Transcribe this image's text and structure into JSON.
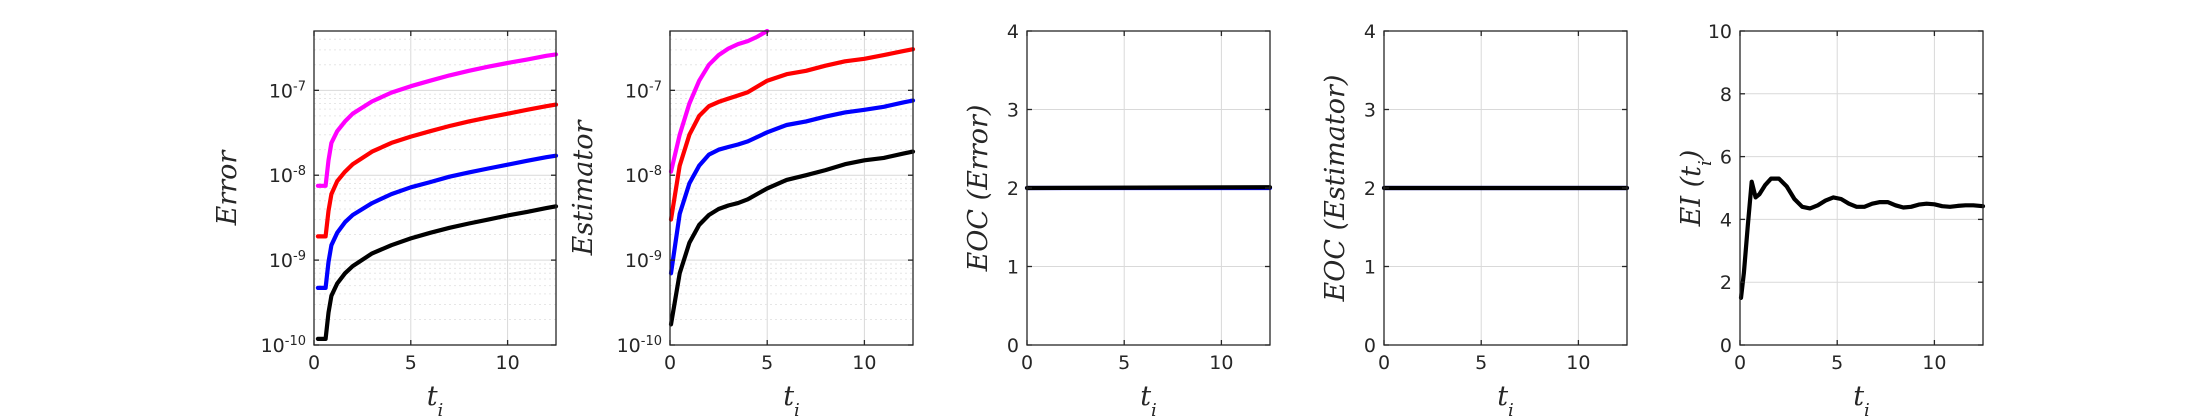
{
  "chart_data": [
    {
      "type": "line",
      "yscale": "log",
      "xlabel": "t_i",
      "ylabel": "Error",
      "xlim": [
        0,
        12.5
      ],
      "ylim": [
        1e-10,
        5e-07
      ],
      "xticks": [
        "0",
        "5",
        "10"
      ],
      "yticks": [
        "10^-10",
        "10^-9",
        "10^-8",
        "10^-7"
      ],
      "grid": true,
      "series": [
        {
          "color": "#ff00ff",
          "x": [
            0.2,
            0.6,
            0.75,
            0.9,
            1.2,
            1.6,
            2,
            3,
            4,
            5,
            6,
            7,
            8,
            9,
            10,
            11,
            12,
            12.5
          ],
          "y": [
            7.5e-09,
            7.5e-09,
            1.5e-08,
            2.4e-08,
            3.3e-08,
            4.3e-08,
            5.3e-08,
            7.4e-08,
            9.4e-08,
            1.12e-07,
            1.3e-07,
            1.5e-07,
            1.7e-07,
            1.9e-07,
            2.1e-07,
            2.3e-07,
            2.55e-07,
            2.65e-07
          ]
        },
        {
          "color": "#ff0000",
          "x": [
            0.2,
            0.6,
            0.75,
            0.9,
            1.2,
            1.6,
            2,
            3,
            4,
            5,
            6,
            7,
            8,
            9,
            10,
            11,
            12,
            12.5
          ],
          "y": [
            1.9e-09,
            1.9e-09,
            3.8e-09,
            6e-09,
            8.5e-09,
            1.1e-08,
            1.35e-08,
            1.9e-08,
            2.4e-08,
            2.85e-08,
            3.3e-08,
            3.8e-08,
            4.3e-08,
            4.8e-08,
            5.3e-08,
            5.9e-08,
            6.5e-08,
            6.8e-08
          ]
        },
        {
          "color": "#0000ff",
          "x": [
            0.2,
            0.6,
            0.75,
            0.9,
            1.2,
            1.6,
            2,
            3,
            4,
            5,
            6,
            7,
            8,
            9,
            10,
            11,
            12,
            12.5
          ],
          "y": [
            4.7e-10,
            4.7e-10,
            9.5e-10,
            1.5e-09,
            2.1e-09,
            2.8e-09,
            3.4e-09,
            4.7e-09,
            6e-09,
            7.2e-09,
            8.3e-09,
            9.6e-09,
            1.08e-08,
            1.2e-08,
            1.33e-08,
            1.48e-08,
            1.63e-08,
            1.7e-08
          ]
        },
        {
          "color": "#000000",
          "x": [
            0.2,
            0.6,
            0.75,
            0.9,
            1.2,
            1.6,
            2,
            3,
            4,
            5,
            6,
            7,
            8,
            9,
            10,
            11,
            12,
            12.5
          ],
          "y": [
            1.18e-10,
            1.18e-10,
            2.4e-10,
            3.8e-10,
            5.3e-10,
            7e-10,
            8.5e-10,
            1.2e-09,
            1.5e-09,
            1.8e-09,
            2.1e-09,
            2.4e-09,
            2.7e-09,
            3e-09,
            3.35e-09,
            3.7e-09,
            4.1e-09,
            4.3e-09
          ]
        }
      ]
    },
    {
      "type": "line",
      "yscale": "log",
      "xlabel": "t_i",
      "ylabel": "Estimator",
      "xlim": [
        0,
        12.5
      ],
      "ylim": [
        1e-10,
        5e-07
      ],
      "xticks": [
        "0",
        "5",
        "10"
      ],
      "yticks": [
        "10^-10",
        "10^-9",
        "10^-8",
        "10^-7"
      ],
      "grid": true,
      "series": [
        {
          "color": "#ff00ff",
          "x": [
            0.05,
            0.5,
            1,
            1.5,
            2,
            2.5,
            3,
            3.5,
            4,
            4.5,
            5
          ],
          "y": [
            1.1e-08,
            3e-08,
            7e-08,
            1.3e-07,
            2e-07,
            2.6e-07,
            3.1e-07,
            3.5e-07,
            3.8e-07,
            4.3e-07,
            5e-07
          ]
        },
        {
          "color": "#ff0000",
          "x": [
            0.05,
            0.5,
            1,
            1.5,
            2,
            2.5,
            3,
            3.5,
            4,
            5,
            6,
            7,
            8,
            9,
            10,
            11,
            12,
            12.5
          ],
          "y": [
            3e-09,
            1.3e-08,
            3e-08,
            5e-08,
            6.5e-08,
            7.3e-08,
            8e-08,
            8.7e-08,
            9.5e-08,
            1.3e-07,
            1.55e-07,
            1.7e-07,
            1.95e-07,
            2.2e-07,
            2.35e-07,
            2.6e-07,
            2.9e-07,
            3.05e-07
          ]
        },
        {
          "color": "#0000ff",
          "x": [
            0.05,
            0.5,
            1,
            1.5,
            2,
            2.5,
            3,
            3.5,
            4,
            5,
            6,
            7,
            8,
            9,
            10,
            11,
            12,
            12.5
          ],
          "y": [
            7e-10,
            3.5e-09,
            8e-09,
            1.3e-08,
            1.75e-08,
            2e-08,
            2.15e-08,
            2.3e-08,
            2.5e-08,
            3.2e-08,
            3.9e-08,
            4.3e-08,
            4.9e-08,
            5.5e-08,
            5.9e-08,
            6.4e-08,
            7.2e-08,
            7.6e-08
          ]
        },
        {
          "color": "#000000",
          "x": [
            0.05,
            0.5,
            1,
            1.5,
            2,
            2.5,
            3,
            3.5,
            4,
            5,
            6,
            7,
            8,
            9,
            10,
            11,
            12,
            12.5
          ],
          "y": [
            1.75e-10,
            7e-10,
            1.6e-09,
            2.6e-09,
            3.4e-09,
            4e-09,
            4.4e-09,
            4.7e-09,
            5.2e-09,
            7e-09,
            8.8e-09,
            1e-08,
            1.15e-08,
            1.35e-08,
            1.5e-08,
            1.6e-08,
            1.8e-08,
            1.9e-08
          ]
        }
      ]
    },
    {
      "type": "line",
      "yscale": "linear",
      "xlabel": "t_i",
      "ylabel": "EOC (Error)",
      "xlim": [
        0,
        12.5
      ],
      "ylim": [
        0,
        4
      ],
      "xticks": [
        "0",
        "5",
        "10"
      ],
      "yticks": [
        "0",
        "1",
        "2",
        "3",
        "4"
      ],
      "grid": true,
      "series": [
        {
          "color": "#0000ff",
          "x": [
            0,
            12.5
          ],
          "y": [
            2.0,
            2.0
          ]
        },
        {
          "color": "#000000",
          "x": [
            0,
            12.5
          ],
          "y": [
            2.0,
            2.01
          ]
        }
      ]
    },
    {
      "type": "line",
      "yscale": "linear",
      "xlabel": "t_i",
      "ylabel": "EOC (Estimator)",
      "xlim": [
        0,
        12.5
      ],
      "ylim": [
        0,
        4
      ],
      "xticks": [
        "0",
        "5",
        "10"
      ],
      "yticks": [
        "0",
        "1",
        "2",
        "3",
        "4"
      ],
      "grid": true,
      "series": [
        {
          "color": "#0000ff",
          "x": [
            0,
            12.5
          ],
          "y": [
            2.0,
            2.0
          ]
        },
        {
          "color": "#000000",
          "x": [
            0,
            12.5
          ],
          "y": [
            2.0,
            2.0
          ]
        }
      ]
    },
    {
      "type": "line",
      "yscale": "linear",
      "xlabel": "t_i",
      "ylabel": "EI (t_i)",
      "xlim": [
        0,
        12.5
      ],
      "ylim": [
        0,
        10
      ],
      "xticks": [
        "0",
        "5",
        "10"
      ],
      "yticks": [
        "0",
        "2",
        "4",
        "6",
        "8",
        "10"
      ],
      "grid": true,
      "series": [
        {
          "color": "#000000",
          "x": [
            0.05,
            0.2,
            0.4,
            0.6,
            0.8,
            1,
            1.3,
            1.6,
            2,
            2.4,
            2.8,
            3.2,
            3.6,
            4,
            4.4,
            4.8,
            5.2,
            5.6,
            6,
            6.4,
            6.8,
            7.2,
            7.6,
            8,
            8.4,
            8.8,
            9.2,
            9.6,
            10,
            10.4,
            10.8,
            11.2,
            11.6,
            12,
            12.5
          ],
          "y": [
            1.5,
            2.3,
            3.8,
            5.2,
            4.7,
            4.8,
            5.1,
            5.3,
            5.3,
            5.05,
            4.65,
            4.4,
            4.35,
            4.45,
            4.6,
            4.7,
            4.65,
            4.5,
            4.4,
            4.4,
            4.5,
            4.55,
            4.55,
            4.45,
            4.38,
            4.4,
            4.47,
            4.5,
            4.48,
            4.42,
            4.4,
            4.43,
            4.45,
            4.45,
            4.42
          ]
        }
      ]
    }
  ]
}
